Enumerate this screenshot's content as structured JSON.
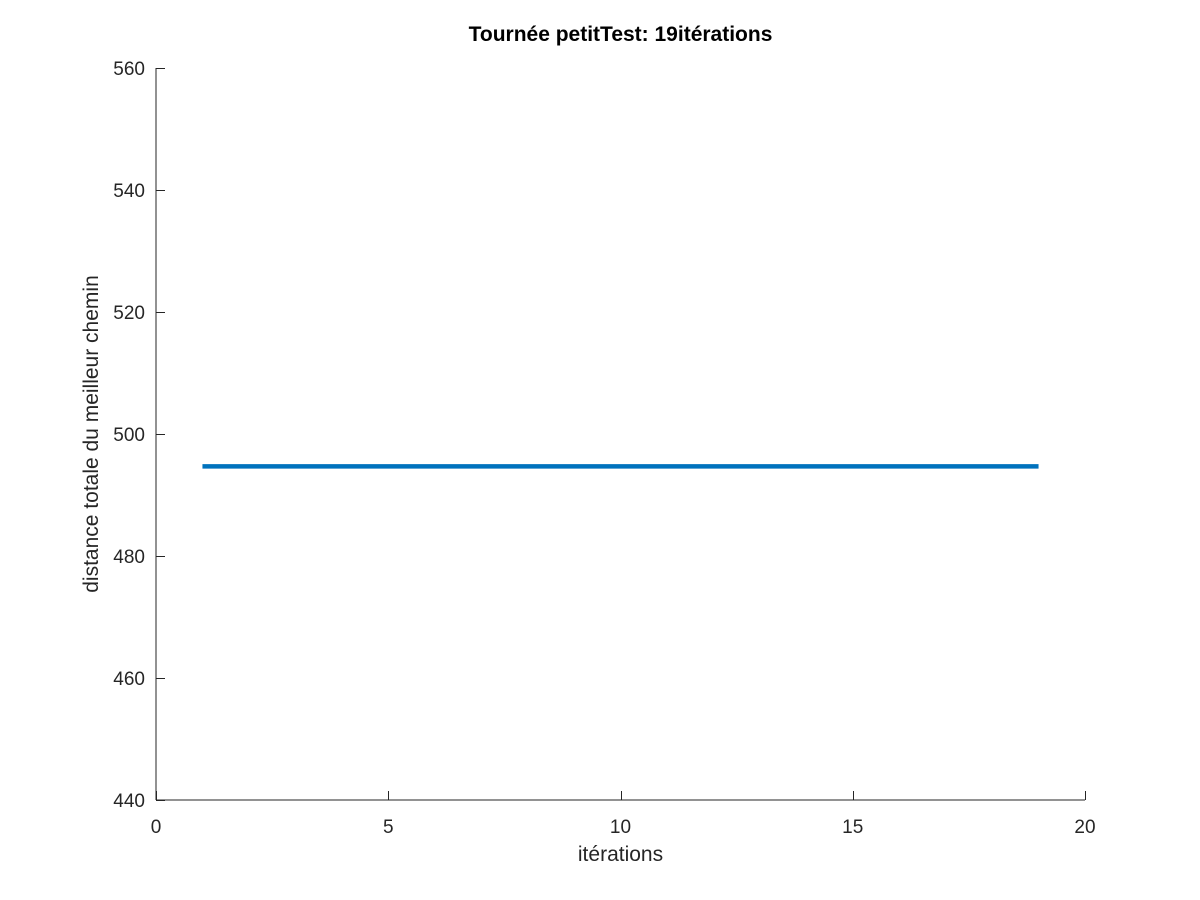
{
  "chart_data": {
    "type": "line",
    "title": "Tournée petitTest: 19itérations",
    "xlabel": "itérations",
    "ylabel": "distance totale du meilleur chemin",
    "xlim": [
      0,
      20
    ],
    "ylim": [
      440,
      560
    ],
    "x_ticks": [
      0,
      5,
      10,
      15,
      20
    ],
    "y_ticks": [
      440,
      460,
      480,
      500,
      520,
      540,
      560
    ],
    "x_tick_labels": [
      "0",
      "5",
      "10",
      "15",
      "20"
    ],
    "y_tick_labels": [
      "440",
      "460",
      "480",
      "500",
      "520",
      "540",
      "560"
    ],
    "grid": false,
    "legend": false,
    "series": [
      {
        "color": "#0072bd",
        "x": [
          1,
          2,
          3,
          4,
          5,
          6,
          7,
          8,
          9,
          10,
          11,
          12,
          13,
          14,
          15,
          16,
          17,
          18,
          19
        ],
        "y": [
          494.7,
          494.7,
          494.7,
          494.7,
          494.7,
          494.7,
          494.7,
          494.7,
          494.7,
          494.7,
          494.7,
          494.7,
          494.7,
          494.7,
          494.7,
          494.7,
          494.7,
          494.7,
          494.7
        ]
      }
    ]
  }
}
